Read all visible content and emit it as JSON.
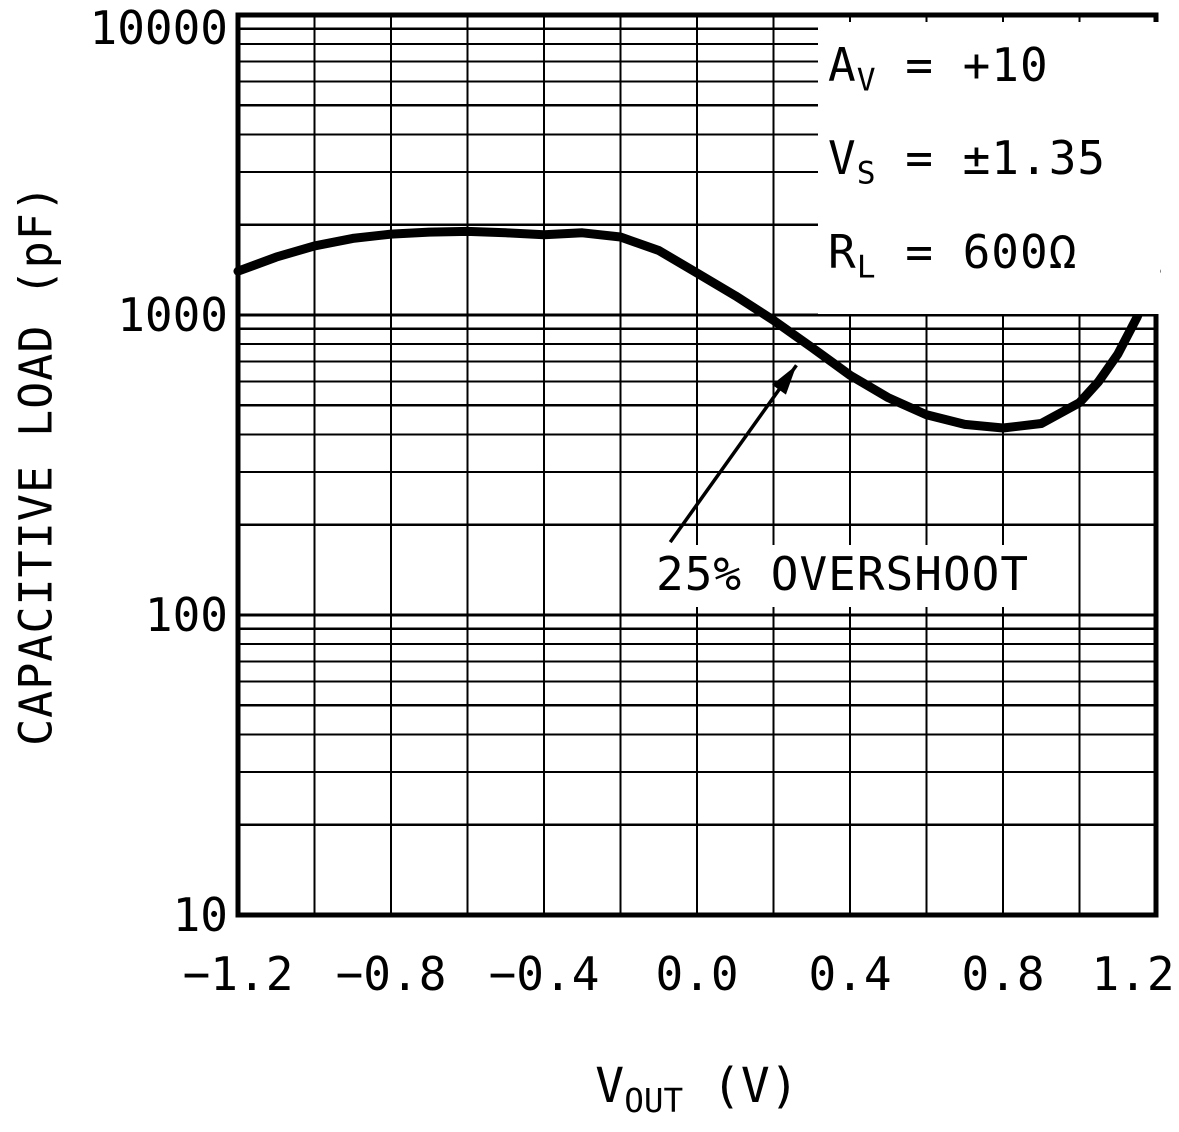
{
  "chart_data": {
    "type": "line",
    "title": "",
    "ylabel": "CAPACITIVE LOAD (pF)",
    "xlabel": {
      "main": "V",
      "sub": "OUT",
      "rest": " (V)"
    },
    "x_scale": "linear",
    "y_scale": "log",
    "xlim": [
      -1.2,
      1.2
    ],
    "ylim": [
      10,
      10000
    ],
    "x_grid_step": 0.2,
    "grid": "on",
    "x_ticks": [
      {
        "v": -1.2,
        "label": "−1.2"
      },
      {
        "v": -0.8,
        "label": "−0.8"
      },
      {
        "v": -0.4,
        "label": "−0.4"
      },
      {
        "v": 0.0,
        "label": "0.0"
      },
      {
        "v": 0.4,
        "label": "0.4"
      },
      {
        "v": 0.8,
        "label": "0.8"
      },
      {
        "v": 1.2,
        "label": "1.2"
      }
    ],
    "y_ticks": [
      {
        "v": 10,
        "label": "10"
      },
      {
        "v": 100,
        "label": "100"
      },
      {
        "v": 1000,
        "label": "1000"
      },
      {
        "v": 10000,
        "label": "10000"
      }
    ],
    "series": [
      {
        "name": "25% OVERSHOOT",
        "x": [
          -1.2,
          -1.1,
          -1.0,
          -0.9,
          -0.8,
          -0.7,
          -0.6,
          -0.5,
          -0.4,
          -0.3,
          -0.2,
          -0.1,
          0.0,
          0.1,
          0.2,
          0.3,
          0.4,
          0.5,
          0.6,
          0.7,
          0.8,
          0.9,
          1.0,
          1.05,
          1.1,
          1.15,
          1.2
        ],
        "y": [
          1400,
          1560,
          1700,
          1800,
          1860,
          1890,
          1900,
          1880,
          1850,
          1880,
          1820,
          1640,
          1380,
          1160,
          960,
          780,
          630,
          530,
          465,
          432,
          420,
          435,
          510,
          600,
          740,
          980,
          1400
        ]
      }
    ],
    "conditions": [
      {
        "main": "A",
        "sub": "V",
        "rest": " = +10"
      },
      {
        "main": "V",
        "sub": "S",
        "rest": " = ±1.35"
      },
      {
        "main": "R",
        "sub": "L",
        "rest": " = 600Ω"
      }
    ],
    "callout": {
      "label": "25% OVERSHOOT",
      "arrow": {
        "x1": -0.07,
        "y1": 175,
        "x2": 0.26,
        "y2": 680
      }
    },
    "colors": {
      "foreground": "#000000",
      "background": "#ffffff"
    }
  }
}
